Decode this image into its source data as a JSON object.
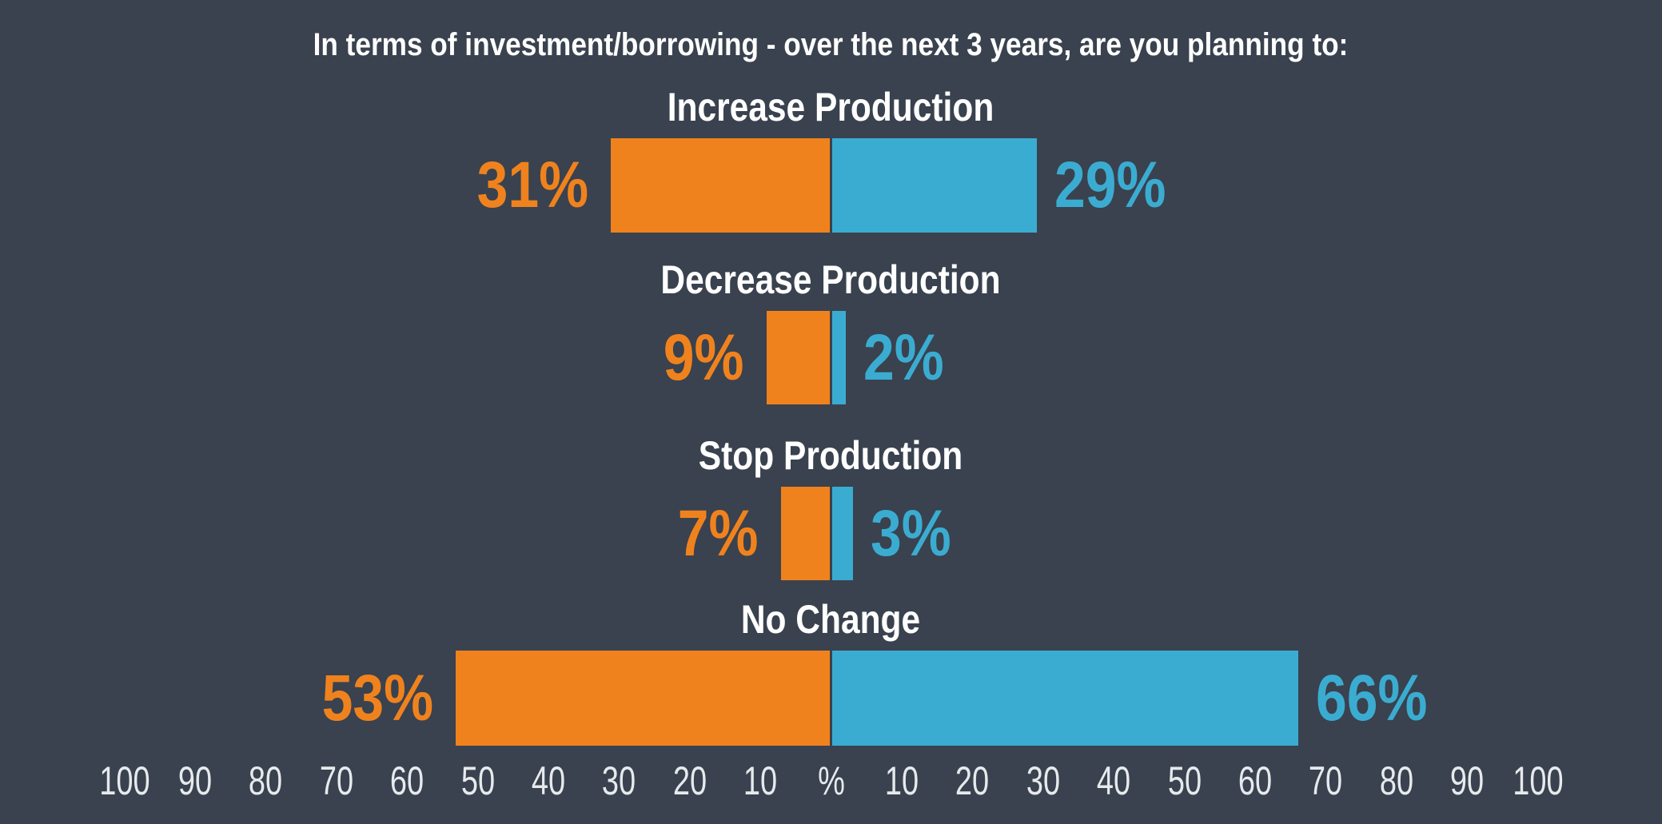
{
  "colors": {
    "background": "#39424E",
    "left_series": "#F0821E",
    "right_series": "#3BACD1",
    "title_text": "#FFFFFF",
    "category_text": "#FFFFFF",
    "axis_text": "#E7EAED"
  },
  "chart_data": {
    "type": "bar",
    "orientation": "horizontal-diverging",
    "title": "In terms of investment/borrowing - over the next 3 years, are you planning to:",
    "categories": [
      "Increase Production",
      "Decrease Production",
      "Stop Production",
      "No Change"
    ],
    "series": [
      {
        "name": "left",
        "color": "#F0821E",
        "values": [
          31,
          9,
          7,
          53
        ],
        "labels": [
          "31%",
          "9%",
          "7%",
          "53%"
        ]
      },
      {
        "name": "right",
        "color": "#3BACD1",
        "values": [
          29,
          2,
          3,
          66
        ],
        "labels": [
          "29%",
          "2%",
          "3%",
          "66%"
        ]
      }
    ],
    "value_suffix": "%",
    "xlim": [
      -100,
      100
    ],
    "axis": {
      "left_ticks": [
        100,
        90,
        80,
        70,
        60,
        50,
        40,
        30,
        20,
        10
      ],
      "center_label": "%",
      "right_ticks": [
        10,
        20,
        30,
        40,
        50,
        60,
        70,
        80,
        90,
        100
      ]
    },
    "legend": "none",
    "grid": false
  }
}
